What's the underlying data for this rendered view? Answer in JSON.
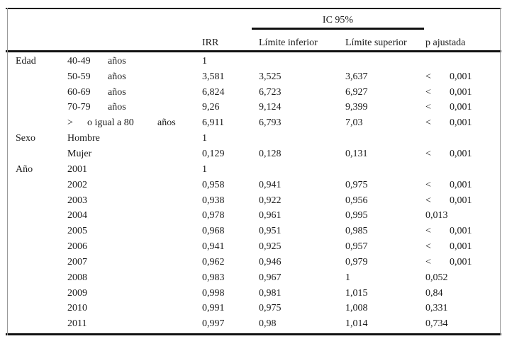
{
  "page": {
    "background": "#ffffff",
    "text_color": "#1a1a1a",
    "rule_color": "#111111",
    "side_border_color": "#9a9a9a"
  },
  "table": {
    "spanner_header": "IC 95%",
    "column_headers": {
      "irr": "IRR",
      "lower": "Límite inferior",
      "upper": "Límite superior",
      "p_adjusted": "p ajustada"
    },
    "rows": [
      {
        "group": "Edad",
        "label_parts": [
          "40-49",
          "años"
        ],
        "irr": "1",
        "lower": "",
        "upper": "",
        "p_prefix": "",
        "p": ""
      },
      {
        "group": "",
        "label_parts": [
          "50-59",
          "años"
        ],
        "irr": "3,581",
        "lower": "3,525",
        "upper": "3,637",
        "p_prefix": "<",
        "p": "0,001"
      },
      {
        "group": "",
        "label_parts": [
          "60-69",
          "años"
        ],
        "irr": "6,824",
        "lower": "6,723",
        "upper": "6,927",
        "p_prefix": "<",
        "p": "0,001"
      },
      {
        "group": "",
        "label_parts": [
          "70-79",
          "años"
        ],
        "irr": "9,26",
        "lower": "9,124",
        "upper": "9,399",
        "p_prefix": "<",
        "p": "0,001"
      },
      {
        "group": "",
        "label_parts": [
          ">",
          "o igual a 80",
          "años"
        ],
        "irr": "6,911",
        "lower": "6,793",
        "upper": "7,03",
        "p_prefix": "<",
        "p": "0,001"
      },
      {
        "group": "Sexo",
        "label_parts": [
          "Hombre"
        ],
        "irr": "1",
        "lower": "",
        "upper": "",
        "p_prefix": "",
        "p": ""
      },
      {
        "group": "",
        "label_parts": [
          "Mujer"
        ],
        "irr": "0,129",
        "lower": "0,128",
        "upper": "0,131",
        "p_prefix": "<",
        "p": "0,001"
      },
      {
        "group": "Año",
        "label_parts": [
          "2001"
        ],
        "irr": "1",
        "lower": "",
        "upper": "",
        "p_prefix": "",
        "p": ""
      },
      {
        "group": "",
        "label_parts": [
          "2002"
        ],
        "irr": "0,958",
        "lower": "0,941",
        "upper": "0,975",
        "p_prefix": "<",
        "p": "0,001"
      },
      {
        "group": "",
        "label_parts": [
          "2003"
        ],
        "irr": "0,938",
        "lower": "0,922",
        "upper": "0,956",
        "p_prefix": "<",
        "p": "0,001"
      },
      {
        "group": "",
        "label_parts": [
          "2004"
        ],
        "irr": "0,978",
        "lower": "0,961",
        "upper": "0,995",
        "p_prefix": "",
        "p": "0,013"
      },
      {
        "group": "",
        "label_parts": [
          "2005"
        ],
        "irr": "0,968",
        "lower": "0,951",
        "upper": "0,985",
        "p_prefix": "<",
        "p": "0,001"
      },
      {
        "group": "",
        "label_parts": [
          "2006"
        ],
        "irr": "0,941",
        "lower": "0,925",
        "upper": "0,957",
        "p_prefix": "<",
        "p": "0,001"
      },
      {
        "group": "",
        "label_parts": [
          "2007"
        ],
        "irr": "0,962",
        "lower": "0,946",
        "upper": "0,979",
        "p_prefix": "<",
        "p": "0,001"
      },
      {
        "group": "",
        "label_parts": [
          "2008"
        ],
        "irr": "0,983",
        "lower": "0,967",
        "upper": "1",
        "p_prefix": "",
        "p": "0,052"
      },
      {
        "group": "",
        "label_parts": [
          "2009"
        ],
        "irr": "0,998",
        "lower": "0,981",
        "upper": "1,015",
        "p_prefix": "",
        "p": "0,84"
      },
      {
        "group": "",
        "label_parts": [
          "2010"
        ],
        "irr": "0,991",
        "lower": "0,975",
        "upper": "1,008",
        "p_prefix": "",
        "p": "0,331"
      },
      {
        "group": "",
        "label_parts": [
          "2011"
        ],
        "irr": "0,997",
        "lower": "0,98",
        "upper": "1,014",
        "p_prefix": "",
        "p": "0,734"
      }
    ]
  }
}
